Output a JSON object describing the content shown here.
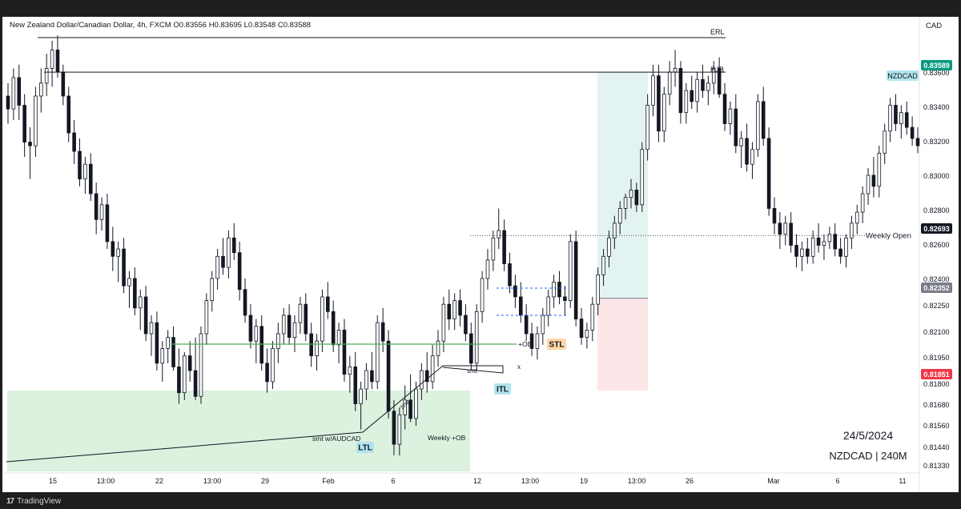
{
  "header": {
    "symbol_line": "New Zealand Dollar/Canadian Dollar, 4h, FXCM",
    "open": "O0.83556",
    "high": "H0.83695",
    "low": "L0.83548",
    "close": "C0.83588",
    "currency": "CAD"
  },
  "footer": {
    "brand": "TradingView",
    "logo": "17"
  },
  "watermark": {
    "date": "24/5/2024",
    "symbol": "NZDCAD | 240M"
  },
  "chart_data": {
    "type": "candlestick",
    "symbol": "NZDCAD",
    "timeframe": "4h",
    "ylim": [
      0.813,
      0.8388
    ],
    "y_ticks": [
      "0.83600",
      "0.83400",
      "0.83200",
      "0.83000",
      "0.82800",
      "0.82600",
      "0.82400",
      "0.82250",
      "0.82100",
      "0.81950",
      "0.81800",
      "0.81680",
      "0.81560",
      "0.81440",
      "0.81330"
    ],
    "x_ticks": [
      "15",
      "13:00",
      "22",
      "13:00",
      "29",
      "Feb",
      "6",
      "12",
      "13:00",
      "19",
      "13:00",
      "26",
      "Mar",
      "6",
      "11"
    ],
    "price_tags": [
      {
        "name": "current",
        "label": "0.83589",
        "value": 0.83589,
        "color": "#089981"
      },
      {
        "name": "weekly-open",
        "label": "0.82693",
        "value": 0.82693,
        "color": "#131722"
      },
      {
        "name": "position-entry",
        "label": "0.82352",
        "value": 0.82352,
        "color": "#787b86"
      },
      {
        "name": "position-stop",
        "label": "0.81851",
        "value": 0.81851,
        "color": "#f23645"
      }
    ],
    "symbol_tag": "NZDCAD",
    "levels": [
      {
        "label": "ERL",
        "value": 0.8381
      },
      {
        "label": "RJB",
        "value": 0.8358
      },
      {
        "label": "Weekly Open",
        "value": 0.82693
      },
      {
        "label": "+OB",
        "value": 0.8203
      }
    ],
    "annotations": [
      "LTL",
      "ITL",
      "STL",
      "smt",
      "smt",
      "smt w/AUDCAD",
      "Weekly +OB",
      "x"
    ],
    "candles": [
      [
        0.8345,
        0.8352,
        0.833,
        0.8338
      ],
      [
        0.8338,
        0.836,
        0.8332,
        0.8355
      ],
      [
        0.8355,
        0.8362,
        0.8332,
        0.834
      ],
      [
        0.834,
        0.8346,
        0.8312,
        0.832
      ],
      [
        0.832,
        0.8328,
        0.83,
        0.8318
      ],
      [
        0.8318,
        0.835,
        0.8312,
        0.8345
      ],
      [
        0.8345,
        0.836,
        0.8336,
        0.8352
      ],
      [
        0.8352,
        0.8368,
        0.8345,
        0.836
      ],
      [
        0.836,
        0.8375,
        0.835,
        0.837
      ],
      [
        0.837,
        0.8378,
        0.8355,
        0.8358
      ],
      [
        0.8358,
        0.8362,
        0.834,
        0.8345
      ],
      [
        0.8345,
        0.835,
        0.832,
        0.8325
      ],
      [
        0.8325,
        0.8332,
        0.8308,
        0.8315
      ],
      [
        0.8315,
        0.8322,
        0.8296,
        0.83
      ],
      [
        0.83,
        0.8312,
        0.8292,
        0.8308
      ],
      [
        0.8308,
        0.8314,
        0.8288,
        0.8292
      ],
      [
        0.8292,
        0.8298,
        0.827,
        0.8278
      ],
      [
        0.8278,
        0.829,
        0.8272,
        0.8286
      ],
      [
        0.8286,
        0.8292,
        0.8262,
        0.8266
      ],
      [
        0.8266,
        0.8274,
        0.825,
        0.8258
      ],
      [
        0.8258,
        0.8266,
        0.8244,
        0.8262
      ],
      [
        0.8262,
        0.8268,
        0.8238,
        0.8242
      ],
      [
        0.8242,
        0.825,
        0.823,
        0.8246
      ],
      [
        0.8246,
        0.8252,
        0.8226,
        0.823
      ],
      [
        0.823,
        0.824,
        0.8218,
        0.8236
      ],
      [
        0.8236,
        0.8242,
        0.8212,
        0.8216
      ],
      [
        0.8216,
        0.8226,
        0.8204,
        0.8222
      ],
      [
        0.8222,
        0.8228,
        0.8196,
        0.82
      ],
      [
        0.82,
        0.8212,
        0.819,
        0.8208
      ],
      [
        0.8208,
        0.8218,
        0.82,
        0.8214
      ],
      [
        0.8214,
        0.822,
        0.8196,
        0.8198
      ],
      [
        0.8198,
        0.8208,
        0.8178,
        0.8184
      ],
      [
        0.8184,
        0.8206,
        0.818,
        0.8204
      ],
      [
        0.8204,
        0.8212,
        0.819,
        0.8196
      ],
      [
        0.8196,
        0.8214,
        0.818,
        0.8182
      ],
      [
        0.8182,
        0.822,
        0.8178,
        0.8216
      ],
      [
        0.8216,
        0.8238,
        0.821,
        0.8234
      ],
      [
        0.8234,
        0.825,
        0.8228,
        0.8246
      ],
      [
        0.8246,
        0.8262,
        0.824,
        0.8258
      ],
      [
        0.8258,
        0.8268,
        0.8248,
        0.8252
      ],
      [
        0.8252,
        0.8272,
        0.8246,
        0.8268
      ],
      [
        0.8268,
        0.8276,
        0.8256,
        0.826
      ],
      [
        0.826,
        0.8266,
        0.8234,
        0.824
      ],
      [
        0.824,
        0.8246,
        0.8222,
        0.8226
      ],
      [
        0.8226,
        0.8232,
        0.8208,
        0.8212
      ],
      [
        0.8212,
        0.8224,
        0.82,
        0.822
      ],
      [
        0.822,
        0.8226,
        0.8196,
        0.82
      ],
      [
        0.82,
        0.8208,
        0.8184,
        0.819
      ],
      [
        0.819,
        0.8212,
        0.8186,
        0.8208
      ],
      [
        0.8208,
        0.8222,
        0.82,
        0.8216
      ],
      [
        0.8216,
        0.823,
        0.821,
        0.8226
      ],
      [
        0.8226,
        0.8232,
        0.821,
        0.8214
      ],
      [
        0.8214,
        0.8226,
        0.8206,
        0.8222
      ],
      [
        0.8222,
        0.8236,
        0.8216,
        0.8232
      ],
      [
        0.8232,
        0.8238,
        0.8212,
        0.8216
      ],
      [
        0.8216,
        0.8222,
        0.8198,
        0.8204
      ],
      [
        0.8204,
        0.8216,
        0.8196,
        0.8212
      ],
      [
        0.8212,
        0.824,
        0.8206,
        0.8236
      ],
      [
        0.8236,
        0.8244,
        0.8224,
        0.8228
      ],
      [
        0.8228,
        0.8234,
        0.8206,
        0.821
      ],
      [
        0.821,
        0.8222,
        0.82,
        0.8218
      ],
      [
        0.8218,
        0.8224,
        0.819,
        0.8194
      ],
      [
        0.8194,
        0.8204,
        0.8184,
        0.8198
      ],
      [
        0.8198,
        0.8206,
        0.8174,
        0.8178
      ],
      [
        0.8178,
        0.819,
        0.8164,
        0.8186
      ],
      [
        0.8186,
        0.82,
        0.818,
        0.8196
      ],
      [
        0.8196,
        0.8206,
        0.8186,
        0.819
      ],
      [
        0.819,
        0.8226,
        0.8186,
        0.8222
      ],
      [
        0.8222,
        0.823,
        0.8206,
        0.8212
      ],
      [
        0.8212,
        0.8218,
        0.817,
        0.8174
      ],
      [
        0.8174,
        0.818,
        0.815,
        0.8156
      ],
      [
        0.8156,
        0.8176,
        0.815,
        0.8172
      ],
      [
        0.8172,
        0.8188,
        0.8164,
        0.818
      ],
      [
        0.818,
        0.8194,
        0.8168,
        0.817
      ],
      [
        0.817,
        0.819,
        0.8166,
        0.8186
      ],
      [
        0.8186,
        0.82,
        0.818,
        0.8196
      ],
      [
        0.8196,
        0.8206,
        0.8184,
        0.819
      ],
      [
        0.819,
        0.821,
        0.8186,
        0.8204
      ],
      [
        0.8204,
        0.8218,
        0.8198,
        0.8212
      ],
      [
        0.8212,
        0.8236,
        0.8206,
        0.8232
      ],
      [
        0.8232,
        0.824,
        0.8218,
        0.8224
      ],
      [
        0.8224,
        0.8238,
        0.8218,
        0.8234
      ],
      [
        0.8234,
        0.824,
        0.822,
        0.8226
      ],
      [
        0.8226,
        0.8232,
        0.8212,
        0.8216
      ],
      [
        0.8216,
        0.8222,
        0.8196,
        0.82
      ],
      [
        0.82,
        0.8232,
        0.8196,
        0.8228
      ],
      [
        0.8228,
        0.825,
        0.8222,
        0.8246
      ],
      [
        0.8246,
        0.8262,
        0.824,
        0.8256
      ],
      [
        0.8256,
        0.8272,
        0.825,
        0.8268
      ],
      [
        0.8268,
        0.8284,
        0.8262,
        0.8272
      ],
      [
        0.8272,
        0.8278,
        0.825,
        0.8254
      ],
      [
        0.8254,
        0.826,
        0.8238,
        0.8242
      ],
      [
        0.8242,
        0.8248,
        0.823,
        0.8236
      ],
      [
        0.8236,
        0.8244,
        0.8222,
        0.8226
      ],
      [
        0.8226,
        0.8232,
        0.8212,
        0.8216
      ],
      [
        0.8216,
        0.8222,
        0.8204,
        0.8208
      ],
      [
        0.8208,
        0.822,
        0.8202,
        0.8216
      ],
      [
        0.8216,
        0.823,
        0.821,
        0.8226
      ],
      [
        0.8226,
        0.824,
        0.822,
        0.8236
      ],
      [
        0.8236,
        0.8248,
        0.823,
        0.8244
      ],
      [
        0.8244,
        0.825,
        0.8232,
        0.8236
      ],
      [
        0.8236,
        0.8242,
        0.8226,
        0.8234
      ],
      [
        0.8234,
        0.827,
        0.823,
        0.8266
      ],
      [
        0.8266,
        0.8272,
        0.822,
        0.8224
      ],
      [
        0.8224,
        0.823,
        0.821,
        0.8214
      ],
      [
        0.8214,
        0.8222,
        0.8208,
        0.8218
      ],
      [
        0.8218,
        0.8236,
        0.8212,
        0.8232
      ],
      [
        0.8232,
        0.8252,
        0.8226,
        0.8248
      ],
      [
        0.8248,
        0.8262,
        0.8242,
        0.8258
      ],
      [
        0.8258,
        0.8272,
        0.8252,
        0.8268
      ],
      [
        0.8268,
        0.828,
        0.8262,
        0.8276
      ],
      [
        0.8276,
        0.8288,
        0.827,
        0.8284
      ],
      [
        0.8284,
        0.8292,
        0.8278,
        0.829
      ],
      [
        0.829,
        0.83,
        0.8284,
        0.8294
      ],
      [
        0.8294,
        0.8298,
        0.8282,
        0.8286
      ],
      [
        0.8286,
        0.832,
        0.8282,
        0.8316
      ],
      [
        0.8316,
        0.8346,
        0.831,
        0.834
      ],
      [
        0.834,
        0.8362,
        0.8334,
        0.8356
      ],
      [
        0.8356,
        0.8362,
        0.832,
        0.8326
      ],
      [
        0.8326,
        0.835,
        0.832,
        0.8346
      ],
      [
        0.8346,
        0.8364,
        0.834,
        0.8358
      ],
      [
        0.8358,
        0.837,
        0.835,
        0.836
      ],
      [
        0.836,
        0.8364,
        0.833,
        0.8336
      ],
      [
        0.8336,
        0.8352,
        0.833,
        0.8348
      ],
      [
        0.8348,
        0.8356,
        0.8338,
        0.8342
      ],
      [
        0.8342,
        0.8358,
        0.8336,
        0.8354
      ],
      [
        0.8354,
        0.8362,
        0.8344,
        0.8348
      ],
      [
        0.8348,
        0.8356,
        0.834,
        0.8352
      ],
      [
        0.8352,
        0.8364,
        0.8346,
        0.836
      ],
      [
        0.836,
        0.8366,
        0.8344,
        0.8346
      ],
      [
        0.8346,
        0.8352,
        0.8326,
        0.833
      ],
      [
        0.833,
        0.8342,
        0.8324,
        0.8338
      ],
      [
        0.8338,
        0.8346,
        0.8314,
        0.8318
      ],
      [
        0.8318,
        0.8326,
        0.8306,
        0.8322
      ],
      [
        0.8322,
        0.833,
        0.8304,
        0.8308
      ],
      [
        0.8308,
        0.832,
        0.83,
        0.8316
      ],
      [
        0.8316,
        0.8346,
        0.8312,
        0.8342
      ],
      [
        0.8342,
        0.835,
        0.8318,
        0.8322
      ],
      [
        0.8322,
        0.8328,
        0.828,
        0.8284
      ],
      [
        0.8284,
        0.829,
        0.827,
        0.8276
      ],
      [
        0.8276,
        0.8282,
        0.8262,
        0.827
      ],
      [
        0.827,
        0.828,
        0.8264,
        0.8276
      ],
      [
        0.8276,
        0.8282,
        0.826,
        0.8264
      ],
      [
        0.8264,
        0.827,
        0.8252,
        0.8258
      ],
      [
        0.8258,
        0.8266,
        0.825,
        0.8262
      ],
      [
        0.8262,
        0.8268,
        0.8254,
        0.8258
      ],
      [
        0.8258,
        0.8272,
        0.8254,
        0.8268
      ],
      [
        0.8268,
        0.8276,
        0.826,
        0.8264
      ],
      [
        0.8264,
        0.827,
        0.8256,
        0.8266
      ],
      [
        0.8266,
        0.8274,
        0.8262,
        0.827
      ],
      [
        0.827,
        0.8276,
        0.8258,
        0.8262
      ],
      [
        0.8262,
        0.8268,
        0.8254,
        0.8258
      ],
      [
        0.8258,
        0.827,
        0.8252,
        0.8268
      ],
      [
        0.8268,
        0.828,
        0.8262,
        0.8276
      ],
      [
        0.8276,
        0.8286,
        0.827,
        0.8282
      ],
      [
        0.8282,
        0.8296,
        0.8276,
        0.8292
      ],
      [
        0.8292,
        0.8306,
        0.8286,
        0.8302
      ],
      [
        0.8302,
        0.8312,
        0.829,
        0.8296
      ],
      [
        0.8296,
        0.8318,
        0.829,
        0.8314
      ],
      [
        0.8314,
        0.833,
        0.8308,
        0.8326
      ],
      [
        0.8326,
        0.8344,
        0.832,
        0.834
      ],
      [
        0.834,
        0.8346,
        0.8326,
        0.833
      ],
      [
        0.833,
        0.834,
        0.8322,
        0.8336
      ],
      [
        0.8336,
        0.8342,
        0.8324,
        0.8328
      ],
      [
        0.8328,
        0.8334,
        0.8318,
        0.8322
      ],
      [
        0.8322,
        0.8328,
        0.8314,
        0.8318
      ]
    ]
  }
}
